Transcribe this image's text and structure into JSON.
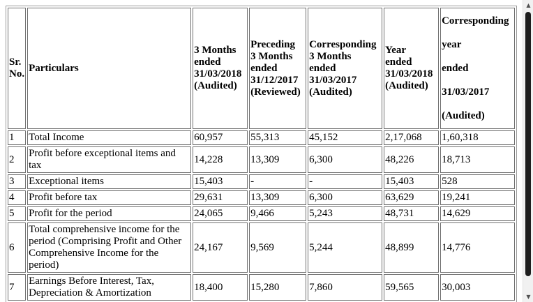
{
  "table": {
    "headers": {
      "sr": [
        "Sr.",
        "No."
      ],
      "particulars": "Particulars",
      "col1": [
        "3 Months",
        "ended",
        "31/03/2018",
        "(Audited)"
      ],
      "col2": [
        "Preceding",
        "3 Months",
        "ended",
        "31/12/2017",
        "(Reviewed)"
      ],
      "col3": [
        "Corresponding",
        "3 Months",
        "ended",
        "31/03/2017",
        "(Audited)"
      ],
      "col4": [
        "Year",
        "ended",
        "31/03/2018",
        "(Audited)"
      ],
      "col5": [
        "Corresponding",
        "year",
        "ended",
        "31/03/2017",
        "(Audited)"
      ]
    },
    "rows": [
      {
        "sr": "1",
        "particulars": "Total Income",
        "values": [
          "60,957",
          "55,313",
          "45,152",
          "2,17,068",
          "1,60,318"
        ]
      },
      {
        "sr": "2",
        "particulars": "Profit before exceptional items and tax",
        "values": [
          "14,228",
          "13,309",
          "6,300",
          "48,226",
          "18,713"
        ]
      },
      {
        "sr": "3",
        "particulars": "Exceptional items",
        "values": [
          "15,403",
          "-",
          "-",
          "15,403",
          "528"
        ]
      },
      {
        "sr": "4",
        "particulars": "Profit before tax",
        "values": [
          "29,631",
          "13,309",
          "6,300",
          "63,629",
          "19,241"
        ]
      },
      {
        "sr": "5",
        "particulars": "Profit for the period",
        "values": [
          "24,065",
          "9,466",
          "5,243",
          "48,731",
          "14,629"
        ]
      },
      {
        "sr": "6",
        "particulars": "Total comprehensive income for the period (Comprising Profit and Other Comprehensive Income for the period)",
        "values": [
          "24,167",
          "9,569",
          "5,244",
          "48,899",
          "14,776"
        ]
      },
      {
        "sr": "7",
        "particulars": "Earnings Before Interest, Tax, Depreciation & Amortization",
        "values": [
          "18,400",
          "15,280",
          "7,860",
          "59,565",
          "30,003"
        ]
      }
    ]
  },
  "scrollbar": {
    "up_arrow": "▲",
    "down_arrow": "▼",
    "thumb_fraction": 0.94
  }
}
